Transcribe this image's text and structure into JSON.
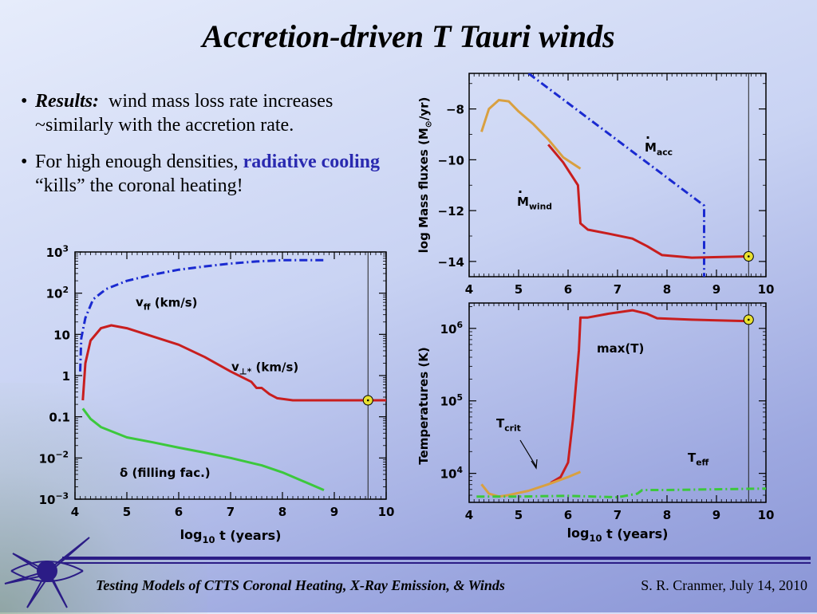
{
  "slide": {
    "title": "Accretion-driven T Tauri winds",
    "bullets": [
      {
        "lead": "Results:",
        "text_1": "wind mass loss rate increases ~similarly with the accretion rate."
      },
      {
        "text_1": "For high enough densities, ",
        "highlight": "radiative cooling",
        "text_2": " “kills” the coronal heating!"
      }
    ],
    "footer_left": "Testing Models of CTTS Coronal Heating, X-Ray Emission, & Winds",
    "footer_right": "S. R. Cranmer, July 14, 2010"
  },
  "colors": {
    "red": "#c81e1e",
    "blue": "#1a2ad0",
    "green": "#3cc83c",
    "orange": "#d9a040",
    "sun_marker": "#e8e030",
    "footer_bar": "#2b1c86"
  },
  "chart_data": [
    {
      "type": "line",
      "name": "velocities",
      "xlabel": "log10 t (years)",
      "xlabel_parts": {
        "main": "log",
        "sub": "10",
        "rest": "t   (years)"
      },
      "xlim": [
        4,
        10
      ],
      "ylim_log10": [
        -3,
        3
      ],
      "yscale": "log",
      "xticks": [
        "4",
        "5",
        "6",
        "7",
        "8",
        "9",
        "10"
      ],
      "yticks": [
        {
          "base": "10",
          "exp": "3",
          "v": 3
        },
        {
          "base": "10",
          "exp": "2",
          "v": 2
        },
        {
          "base": "10",
          "exp": "",
          "v": 1
        },
        {
          "base": "1",
          "exp": "",
          "v": 0
        },
        {
          "base": "0.1",
          "exp": "",
          "v": -1
        },
        {
          "base": "10",
          "exp": "−2",
          "v": -2
        },
        {
          "base": "10",
          "exp": "−3",
          "v": -3
        }
      ],
      "vline_x": 9.65,
      "marker": {
        "x": 9.65,
        "y_log10": -0.6
      },
      "labels": {
        "vff": {
          "main": "v",
          "sub": "ff",
          "rest": "  (km/s)"
        },
        "vperp": {
          "main": "v",
          "sub": "⊥*",
          "rest": "  (km/s)"
        },
        "delta": "δ  (filling fac.)"
      },
      "series": [
        {
          "key": "vff",
          "color": "blue",
          "dash": "dashdot",
          "x": [
            4.1,
            4.12,
            4.2,
            4.35,
            4.6,
            5.0,
            5.5,
            6.0,
            6.5,
            7.0,
            7.5,
            8.0,
            8.8
          ],
          "y_log10": [
            0.1,
            0.9,
            1.4,
            1.85,
            2.1,
            2.3,
            2.45,
            2.57,
            2.65,
            2.72,
            2.77,
            2.8,
            2.8
          ]
        },
        {
          "key": "vperp",
          "color": "red",
          "dash": "solid",
          "x": [
            4.15,
            4.2,
            4.3,
            4.5,
            4.7,
            5.0,
            5.5,
            6.0,
            6.5,
            7.0,
            7.4,
            7.5,
            7.6,
            7.75,
            7.9,
            8.2,
            8.8,
            9.65,
            10
          ],
          "y_log10": [
            -0.6,
            0.3,
            0.85,
            1.15,
            1.22,
            1.15,
            0.95,
            0.75,
            0.45,
            0.1,
            -0.15,
            -0.3,
            -0.3,
            -0.45,
            -0.55,
            -0.6,
            -0.6,
            -0.6,
            -0.6
          ]
        },
        {
          "key": "delta",
          "color": "green",
          "dash": "solid",
          "x": [
            4.15,
            4.3,
            4.5,
            5.0,
            5.5,
            6.0,
            6.5,
            7.0,
            7.5,
            7.6,
            8.0,
            8.8
          ],
          "y_log10": [
            -0.8,
            -1.05,
            -1.25,
            -1.5,
            -1.62,
            -1.75,
            -1.87,
            -2.0,
            -2.15,
            -2.18,
            -2.35,
            -2.78
          ]
        }
      ]
    },
    {
      "type": "line",
      "name": "mass_fluxes",
      "ylabel_parts": {
        "main": "log  Mass  fluxes  (M",
        "sun": "⊙",
        "rest": "/yr)"
      },
      "xlim": [
        4,
        10
      ],
      "ylim": [
        -14.6,
        -6.6
      ],
      "xticks": [
        "4",
        "5",
        "6",
        "7",
        "8",
        "9",
        "10"
      ],
      "yticks": [
        {
          "label": "−8",
          "v": -8
        },
        {
          "label": "−10",
          "v": -10
        },
        {
          "label": "−12",
          "v": -12
        },
        {
          "label": "−14",
          "v": -14
        }
      ],
      "vline_x": 9.65,
      "marker": {
        "x": 9.65,
        "y": -13.8
      },
      "labels": {
        "macc": {
          "main": "M",
          "sub": "acc"
        },
        "mwind": {
          "main": "M",
          "sub": "wind"
        }
      },
      "series": [
        {
          "key": "macc",
          "color": "blue",
          "dash": "dashdot",
          "x": [
            5.2,
            8.75,
            8.75
          ],
          "y": [
            -6.6,
            -11.8,
            -14.6
          ]
        },
        {
          "key": "mwind",
          "color": "red",
          "dash": "solid",
          "x": [
            5.6,
            5.9,
            6.1,
            6.2,
            6.25,
            6.4,
            6.8,
            7.3,
            7.6,
            7.9,
            8.5,
            9.65
          ],
          "y": [
            -9.4,
            -10.1,
            -10.7,
            -11.0,
            -12.5,
            -12.75,
            -12.9,
            -13.1,
            -13.4,
            -13.75,
            -13.85,
            -13.8
          ]
        },
        {
          "key": "orange",
          "color": "orange",
          "dash": "solid",
          "x": [
            4.25,
            4.4,
            4.6,
            4.8,
            5.0,
            5.3,
            5.6,
            5.9,
            6.25
          ],
          "y": [
            -8.9,
            -8.0,
            -7.65,
            -7.7,
            -8.1,
            -8.6,
            -9.2,
            -9.9,
            -10.35
          ]
        }
      ]
    },
    {
      "type": "line",
      "name": "temperatures",
      "ylabel": "Temperatures  (K)",
      "xlabel_parts": {
        "main": "log",
        "sub": "10",
        "rest": "t   (years)"
      },
      "xlim": [
        4,
        10
      ],
      "ylim_log10": [
        3.6,
        6.35
      ],
      "yscale": "log",
      "xticks": [
        "4",
        "5",
        "6",
        "7",
        "8",
        "9",
        "10"
      ],
      "yticks": [
        {
          "base": "10",
          "exp": "6",
          "v": 6
        },
        {
          "base": "10",
          "exp": "5",
          "v": 5
        },
        {
          "base": "10",
          "exp": "4",
          "v": 4
        }
      ],
      "vline_x": 9.65,
      "marker": {
        "x": 9.65,
        "y_log10": 6.12
      },
      "labels": {
        "maxT": "max(T)",
        "tcrit": {
          "main": "T",
          "sub": "crit"
        },
        "teff": {
          "main": "T",
          "sub": "eff"
        }
      },
      "series": [
        {
          "key": "maxT",
          "color": "red",
          "dash": "solid",
          "x": [
            5.65,
            5.85,
            6.0,
            6.1,
            6.22,
            6.25,
            6.4,
            6.8,
            7.3,
            7.6,
            7.8,
            8.5,
            9.65
          ],
          "y_log10": [
            3.87,
            3.95,
            4.15,
            4.75,
            5.7,
            6.15,
            6.15,
            6.2,
            6.25,
            6.2,
            6.14,
            6.12,
            6.1
          ]
        },
        {
          "key": "tcrit",
          "color": "orange",
          "dash": "solid",
          "x": [
            4.25,
            4.4,
            4.6,
            4.8,
            5.2,
            5.6,
            6.0,
            6.25
          ],
          "y_log10": [
            3.85,
            3.72,
            3.68,
            3.7,
            3.76,
            3.85,
            3.95,
            4.02
          ]
        },
        {
          "key": "teff",
          "color": "green",
          "dash": "dashdot",
          "x": [
            4.15,
            5.0,
            6.0,
            7.0,
            7.4,
            7.5,
            8.0,
            9.0,
            10.0
          ],
          "y_log10": [
            3.68,
            3.68,
            3.69,
            3.67,
            3.72,
            3.77,
            3.77,
            3.78,
            3.79
          ]
        }
      ]
    }
  ]
}
